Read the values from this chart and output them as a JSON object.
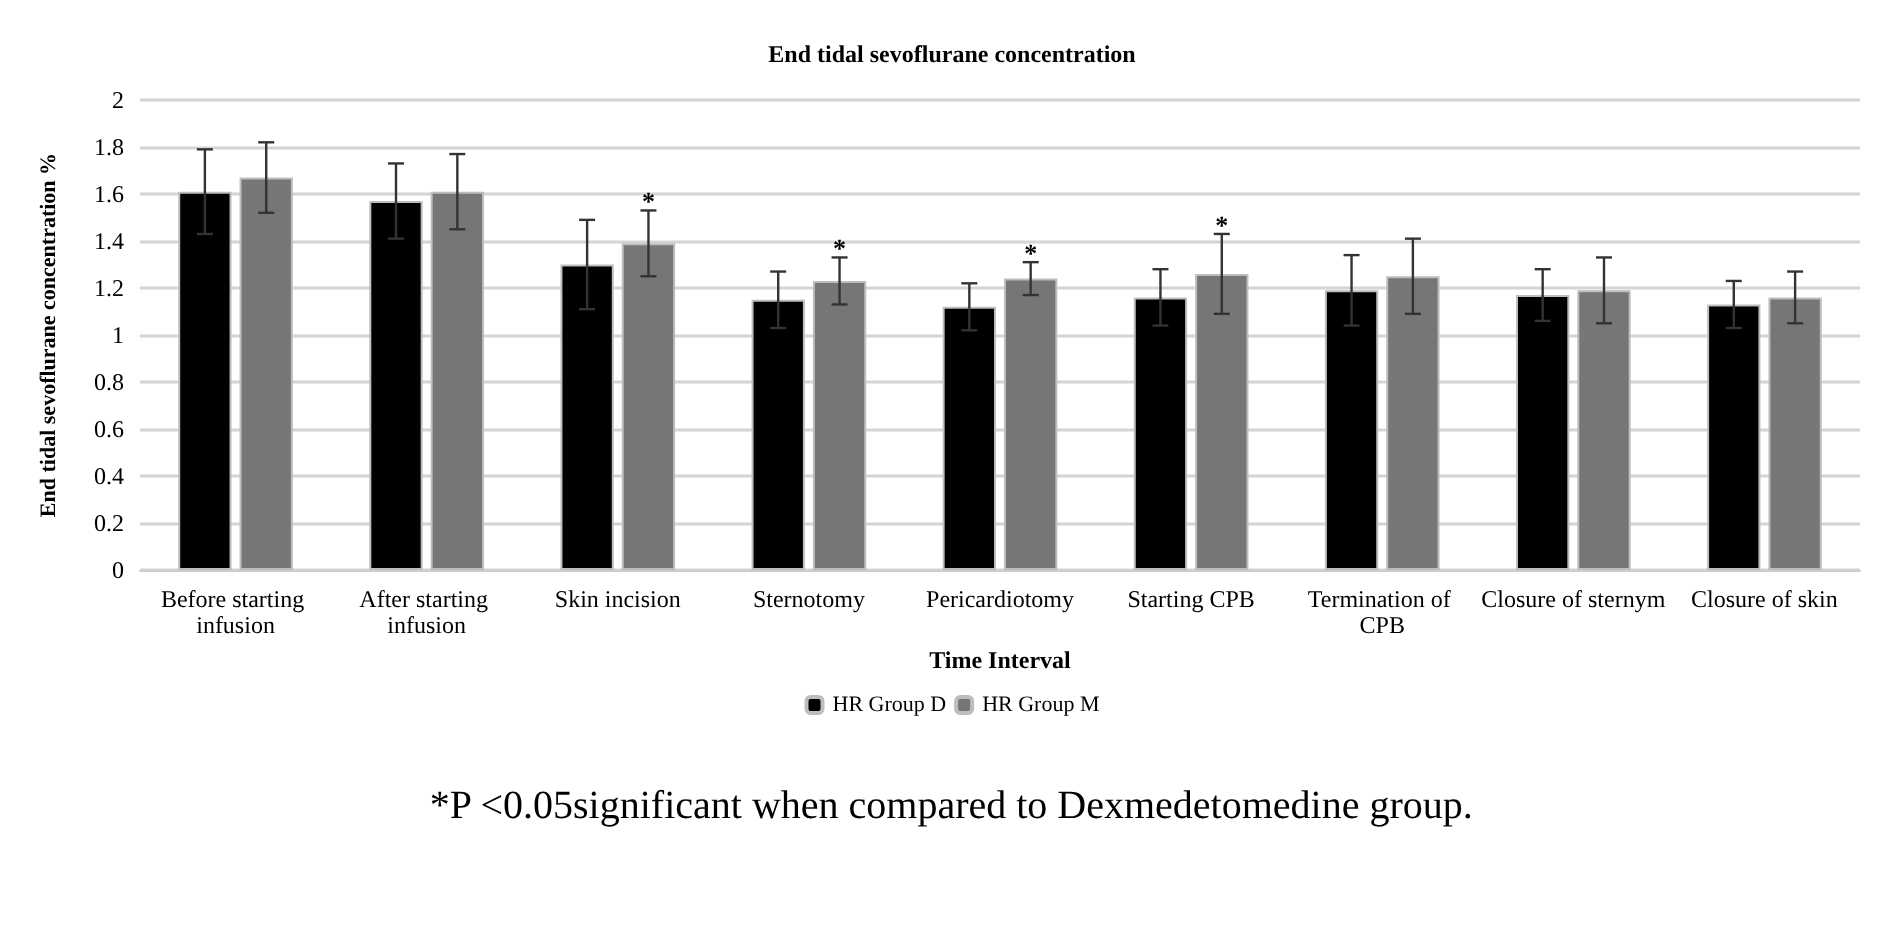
{
  "chart_data": {
    "type": "bar",
    "title": "End tidal sevoflurane concentration",
    "xlabel": "Time Interval",
    "ylabel": "End tidal sevoflurane concentration %",
    "categories": [
      "Before starting infusion",
      "After starting infusion",
      "Skin incision",
      "Sternotomy",
      "Pericardiotomy",
      "Starting CPB",
      "Termination of CPB",
      "Closure of sternym",
      "Closure of skin"
    ],
    "series": [
      {
        "name": "HR Group D",
        "color": "#000000",
        "values": [
          1.61,
          1.57,
          1.3,
          1.15,
          1.12,
          1.16,
          1.19,
          1.17,
          1.13
        ],
        "errors": [
          0.18,
          0.16,
          0.19,
          0.12,
          0.1,
          0.12,
          0.15,
          0.11,
          0.1
        ]
      },
      {
        "name": "HR Group M",
        "color": "#767676",
        "values": [
          1.67,
          1.61,
          1.39,
          1.23,
          1.24,
          1.26,
          1.25,
          1.19,
          1.16
        ],
        "errors": [
          0.15,
          0.16,
          0.14,
          0.1,
          0.07,
          0.17,
          0.16,
          0.14,
          0.11
        ]
      }
    ],
    "ylim": [
      0,
      2
    ],
    "yticks": [
      0,
      0.2,
      0.4,
      0.6,
      0.8,
      1,
      1.2,
      1.4,
      1.6,
      1.8,
      2
    ],
    "grid": "y",
    "legend": "bottom",
    "annotations": [
      {
        "text": "*",
        "x": "Skin incision",
        "y": 1.39
      },
      {
        "text": "*",
        "x": "Sternotomy",
        "y": 1.23
      },
      {
        "text": "*",
        "x": "Pericardiotomy",
        "y": 1.24
      },
      {
        "text": "*",
        "x": "Starting CPB",
        "y": 1.26
      },
      "*P <0.05significant when compared to Dexmedetomedine group."
    ]
  }
}
